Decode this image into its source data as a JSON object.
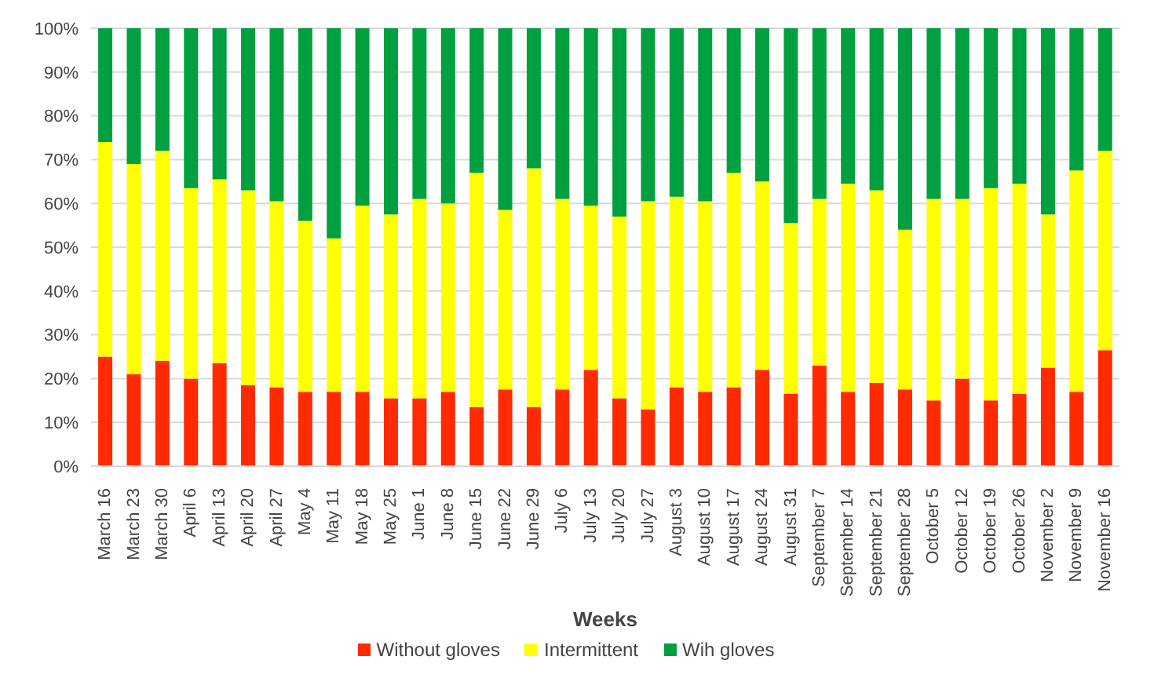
{
  "chart_data": {
    "type": "bar",
    "stacked": true,
    "xlabel": "Weeks",
    "categories": [
      "March 16",
      "March 23",
      "March 30",
      "April 6",
      "April 13",
      "April 20",
      "April 27",
      "May 4",
      "May 11",
      "May 18",
      "May 25",
      "June 1",
      "June 8",
      "June 15",
      "June 22",
      "June 29",
      "July 6",
      "July 13",
      "July 20",
      "July 27",
      "August 3",
      "August 10",
      "August 17",
      "August 24",
      "August 31",
      "September 7",
      "September 14",
      "September 21",
      "September 28",
      "October 5",
      "October 12",
      "October 19",
      "October 26",
      "November 2",
      "November 9",
      "November 16"
    ],
    "series": [
      {
        "name": "Without gloves",
        "color": "#ff2a00",
        "values": [
          25,
          21,
          24,
          20,
          23.5,
          18.5,
          18,
          17,
          17,
          17,
          15.5,
          15.5,
          17,
          13.5,
          17.5,
          13.5,
          17.5,
          22,
          15.5,
          13,
          18,
          17,
          18,
          22,
          16.5,
          23,
          17,
          19,
          17.5,
          15,
          20,
          15,
          16.5,
          22.5,
          17,
          26.5
        ]
      },
      {
        "name": "Intermittent",
        "color": "#ffff00",
        "values": [
          49,
          48,
          48,
          43.5,
          42,
          44.5,
          42.5,
          39,
          35,
          42.5,
          42,
          45.5,
          43,
          53.5,
          41,
          54.5,
          43.5,
          37.5,
          41.5,
          47.5,
          43.5,
          43.5,
          49,
          43,
          39,
          38,
          47.5,
          44,
          36.5,
          46,
          41,
          48.5,
          48,
          35,
          50.5,
          45.5
        ]
      },
      {
        "name": "Wih gloves",
        "color": "#00a040",
        "values": [
          26,
          31,
          28,
          36.5,
          34.5,
          37,
          39.5,
          44,
          48,
          40.5,
          42.5,
          39,
          40,
          33,
          41.5,
          32,
          39,
          40.5,
          43,
          39.5,
          38.5,
          39.5,
          33,
          35,
          44.5,
          39,
          35.5,
          37,
          46,
          39,
          39,
          36.5,
          35.5,
          42.5,
          32.5,
          28
        ]
      }
    ],
    "ylim": [
      0,
      100
    ],
    "yticks": [
      {
        "value": 0,
        "label": "0%"
      },
      {
        "value": 10,
        "label": "10%"
      },
      {
        "value": 20,
        "label": "20%"
      },
      {
        "value": 30,
        "label": "30%"
      },
      {
        "value": 40,
        "label": "40%"
      },
      {
        "value": 50,
        "label": "50%"
      },
      {
        "value": 60,
        "label": "60%"
      },
      {
        "value": 70,
        "label": "70%"
      },
      {
        "value": 80,
        "label": "80%"
      },
      {
        "value": 90,
        "label": "90%"
      },
      {
        "value": 100,
        "label": "100%"
      }
    ],
    "grid": "y",
    "legend": "bottom"
  }
}
